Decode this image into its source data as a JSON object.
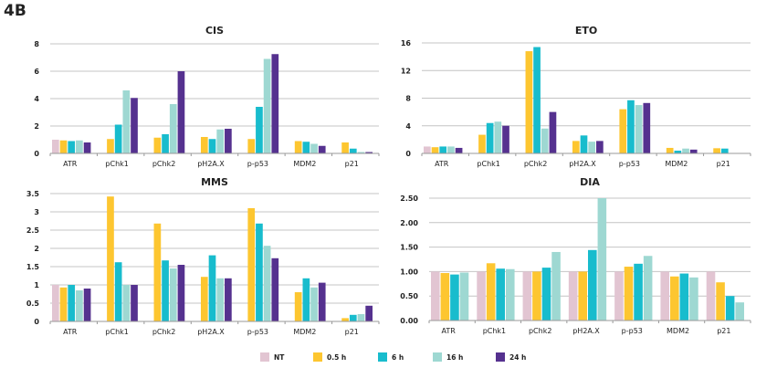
{
  "figure_label": "4B",
  "colors": {
    "NT": "#e2c5d2",
    "0.5 h": "#fdc630",
    "6 h": "#18bccd",
    "16 h": "#9ed8d2",
    "24 h": "#55318f"
  },
  "legend": [
    "NT",
    "0.5 h",
    "6 h",
    "16 h",
    "24 h"
  ],
  "chart_data": [
    {
      "type": "bar",
      "title": "CIS",
      "ylim": [
        0,
        8
      ],
      "yticks": [
        "0",
        "2",
        "4",
        "6",
        "8"
      ],
      "grid": true,
      "categories": [
        "ATR",
        "pChk1",
        "pChk2",
        "pH2A.X",
        "p-p53",
        "MDM2",
        "p21"
      ],
      "series": [
        {
          "name": "NT",
          "values": [
            1.0,
            null,
            null,
            null,
            null,
            null,
            null
          ]
        },
        {
          "name": "0.5 h",
          "values": [
            0.95,
            1.05,
            1.15,
            1.2,
            1.05,
            0.9,
            0.8
          ]
        },
        {
          "name": "6 h",
          "values": [
            0.9,
            2.1,
            1.4,
            1.05,
            3.4,
            0.85,
            0.35
          ]
        },
        {
          "name": "16 h",
          "values": [
            0.95,
            4.6,
            3.6,
            1.75,
            6.9,
            0.7,
            0.1
          ]
        },
        {
          "name": "24 h",
          "values": [
            0.8,
            4.05,
            6.0,
            1.8,
            7.25,
            0.55,
            0.1
          ]
        }
      ]
    },
    {
      "type": "bar",
      "title": "ETO",
      "ylim": [
        0,
        16
      ],
      "yticks": [
        "0",
        "4",
        "8",
        "12",
        "16"
      ],
      "grid": true,
      "categories": [
        "ATR",
        "pChk1",
        "pChk2",
        "pH2A.X",
        "p-p53",
        "MDM2",
        "p21"
      ],
      "series": [
        {
          "name": "NT",
          "values": [
            1.0,
            null,
            null,
            null,
            null,
            null,
            null
          ]
        },
        {
          "name": "0.5 h",
          "values": [
            0.9,
            2.7,
            14.8,
            1.8,
            6.4,
            0.8,
            0.75
          ]
        },
        {
          "name": "6 h",
          "values": [
            1.0,
            4.4,
            15.4,
            2.6,
            7.7,
            0.4,
            0.7
          ]
        },
        {
          "name": "16 h",
          "values": [
            1.0,
            4.6,
            3.6,
            1.7,
            7.0,
            0.7,
            0.05
          ]
        },
        {
          "name": "24 h",
          "values": [
            0.8,
            4.0,
            6.0,
            1.8,
            7.3,
            0.55,
            0.05
          ]
        }
      ]
    },
    {
      "type": "bar",
      "title": "MMS",
      "ylim": [
        0,
        3.5
      ],
      "yticks": [
        "0",
        "0.5",
        "1",
        "1.5",
        "2",
        "2.5",
        "3",
        "3.5"
      ],
      "grid": true,
      "categories": [
        "ATR",
        "pChk1",
        "pChk2",
        "pH2A.X",
        "p-p53",
        "MDM2",
        "p21"
      ],
      "series": [
        {
          "name": "NT",
          "values": [
            1.0,
            null,
            null,
            null,
            null,
            null,
            null
          ]
        },
        {
          "name": "0.5 h",
          "values": [
            0.93,
            3.42,
            2.68,
            1.22,
            3.1,
            0.8,
            0.09
          ]
        },
        {
          "name": "6 h",
          "values": [
            1.0,
            1.62,
            1.67,
            1.81,
            2.68,
            1.18,
            0.18
          ]
        },
        {
          "name": "16 h",
          "values": [
            0.85,
            1.0,
            1.45,
            1.18,
            2.07,
            0.93,
            0.2
          ]
        },
        {
          "name": "24 h",
          "values": [
            0.9,
            1.0,
            1.55,
            1.18,
            1.73,
            1.06,
            0.43
          ]
        }
      ]
    },
    {
      "type": "bar",
      "title": "DIA",
      "ylim": [
        0,
        2.5
      ],
      "yticks": [
        "0.00",
        "0.50",
        "1.00",
        "1.50",
        "2.00",
        "2.50"
      ],
      "grid": true,
      "categories": [
        "ATR",
        "pChk1",
        "pChk2",
        "pH2A.X",
        "p-p53",
        "MDM2",
        "p21"
      ],
      "series": [
        {
          "name": "NT",
          "values": [
            1,
            1,
            1,
            1,
            1,
            1,
            1
          ]
        },
        {
          "name": "0.5 h",
          "values": [
            0.97,
            1.17,
            1.0,
            1.0,
            1.1,
            0.9,
            0.78
          ]
        },
        {
          "name": "6 h",
          "values": [
            0.94,
            1.06,
            1.08,
            1.44,
            1.16,
            0.96,
            0.5
          ]
        },
        {
          "name": "16 h",
          "values": [
            0.98,
            1.05,
            1.4,
            2.5,
            1.32,
            0.88,
            0.37
          ]
        }
      ]
    }
  ]
}
